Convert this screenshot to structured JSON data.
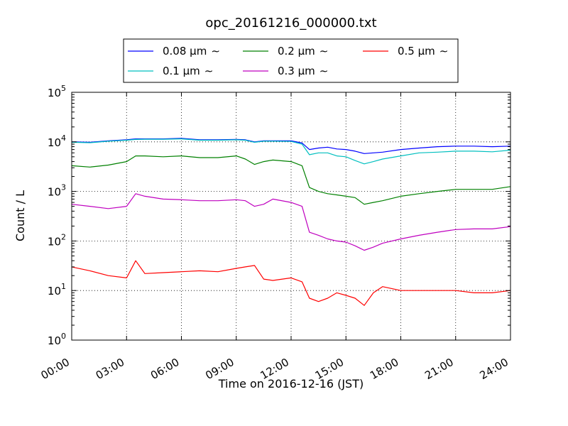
{
  "chart_data": {
    "type": "line",
    "title": "opc_20161216_000000.txt",
    "xlabel": "Time on 2016-12-16 (JST)",
    "ylabel": "Count / L",
    "xlim": [
      "00:00",
      "24:00"
    ],
    "ylim": [
      1,
      100000
    ],
    "yscale": "log",
    "grid": true,
    "legend_position": "top-center",
    "xticks": [
      "00:00",
      "03:00",
      "06:00",
      "09:00",
      "12:00",
      "15:00",
      "18:00",
      "21:00",
      "24:00"
    ],
    "yticks": [
      {
        "value": 1,
        "base": "10",
        "exp": "0"
      },
      {
        "value": 10,
        "base": "10",
        "exp": "1"
      },
      {
        "value": 100,
        "base": "10",
        "exp": "2"
      },
      {
        "value": 1000,
        "base": "10",
        "exp": "3"
      },
      {
        "value": 10000,
        "base": "10",
        "exp": "4"
      },
      {
        "value": 100000,
        "base": "10",
        "exp": "5"
      }
    ],
    "legend_suffix": "∼",
    "x_hours": [
      0,
      1,
      2,
      3,
      3.5,
      4,
      5,
      6,
      7,
      8,
      9,
      9.5,
      10,
      10.5,
      11,
      12,
      12.6,
      13,
      13.5,
      14,
      14.5,
      15,
      15.5,
      16,
      16.5,
      17,
      18,
      19,
      20,
      21,
      22,
      23,
      24
    ],
    "series": [
      {
        "name": "0.08 μm",
        "color": "#0000ff",
        "values": [
          10000,
          9800,
          10500,
          11000,
          11500,
          11500,
          11500,
          11800,
          11000,
          11000,
          11200,
          11000,
          10000,
          10500,
          10500,
          10500,
          9500,
          7000,
          7500,
          7800,
          7200,
          7000,
          6500,
          5800,
          6000,
          6200,
          7000,
          7500,
          8000,
          8200,
          8200,
          8000,
          8200
        ]
      },
      {
        "name": "0.1 μm",
        "color": "#00bfbf",
        "values": [
          9800,
          9600,
          10300,
          10800,
          11200,
          11300,
          11300,
          11500,
          10800,
          10800,
          11000,
          10800,
          9800,
          10300,
          10300,
          10200,
          9000,
          5500,
          6000,
          6000,
          5200,
          5000,
          4200,
          3600,
          4000,
          4500,
          5200,
          6000,
          6200,
          6500,
          6500,
          6300,
          6800
        ]
      },
      {
        "name": "0.2 μm",
        "color": "#008000",
        "values": [
          3300,
          3100,
          3400,
          4000,
          5200,
          5200,
          5000,
          5200,
          4800,
          4800,
          5200,
          4500,
          3500,
          4000,
          4300,
          4000,
          3300,
          1200,
          1000,
          900,
          850,
          800,
          750,
          550,
          600,
          650,
          800,
          900,
          1000,
          1100,
          1100,
          1100,
          1250
        ]
      },
      {
        "name": "0.3 μm",
        "color": "#bf00bf",
        "values": [
          550,
          500,
          450,
          500,
          900,
          800,
          700,
          680,
          650,
          650,
          680,
          650,
          500,
          550,
          700,
          600,
          500,
          150,
          130,
          110,
          100,
          95,
          80,
          65,
          75,
          90,
          110,
          130,
          150,
          170,
          175,
          175,
          195
        ]
      },
      {
        "name": "0.5 μm",
        "color": "#ff0000",
        "values": [
          30,
          25,
          20,
          18,
          40,
          22,
          23,
          24,
          25,
          24,
          28,
          30,
          32,
          17,
          16,
          18,
          15,
          7,
          6,
          7,
          9,
          8,
          7,
          5,
          9,
          12,
          10,
          10,
          10,
          10,
          9,
          9,
          10
        ]
      }
    ]
  }
}
